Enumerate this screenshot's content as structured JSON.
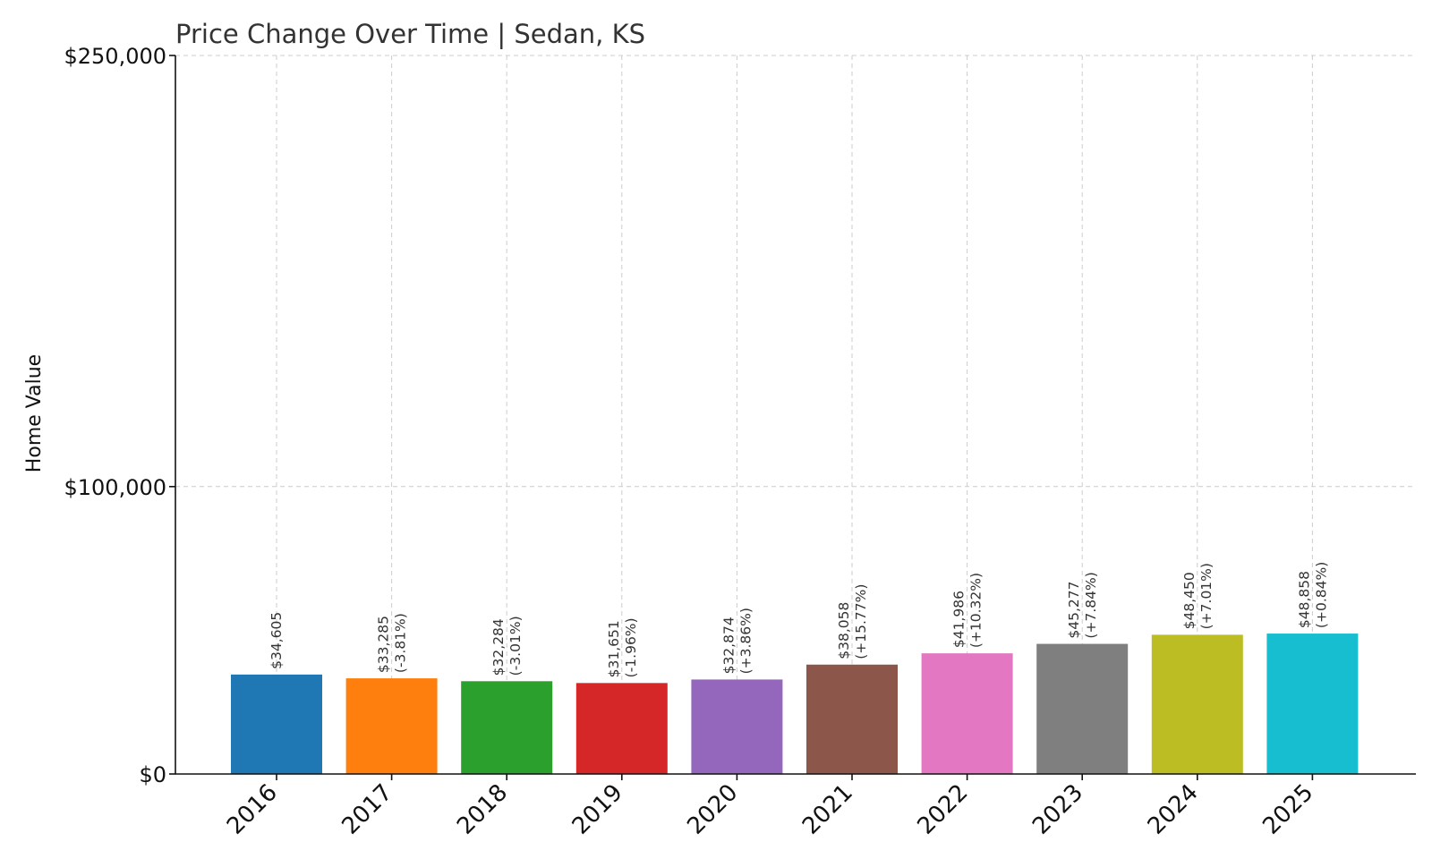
{
  "chart_data": {
    "type": "bar",
    "title": "Price Change Over Time | Sedan, KS",
    "xlabel": "",
    "ylabel": "Home Value",
    "ylim": [
      0,
      250000
    ],
    "yticks": [
      0,
      100000,
      250000
    ],
    "ytick_labels": [
      "$0",
      "$100,000",
      "$250,000"
    ],
    "grid": true,
    "categories": [
      "2016",
      "2017",
      "2018",
      "2019",
      "2020",
      "2021",
      "2022",
      "2023",
      "2024",
      "2025"
    ],
    "values": [
      34605,
      33285,
      32284,
      31651,
      32874,
      38058,
      41986,
      45277,
      48450,
      48858
    ],
    "value_labels": [
      "$34,605",
      "$33,285",
      "$32,284",
      "$31,651",
      "$32,874",
      "$38,058",
      "$41,986",
      "$45,277",
      "$48,450",
      "$48,858"
    ],
    "change_labels": [
      "",
      "(-3.81%)",
      "(-3.01%)",
      "(-1.96%)",
      "(+3.86%)",
      "(+15.77%)",
      "(+10.32%)",
      "(+7.84%)",
      "(+7.01%)",
      "(+0.84%)"
    ],
    "colors": [
      "#1f77b4",
      "#ff7f0e",
      "#2ca02c",
      "#d62728",
      "#9467bd",
      "#8c564b",
      "#e377c2",
      "#7f7f7f",
      "#bcbd22",
      "#17becf"
    ]
  }
}
